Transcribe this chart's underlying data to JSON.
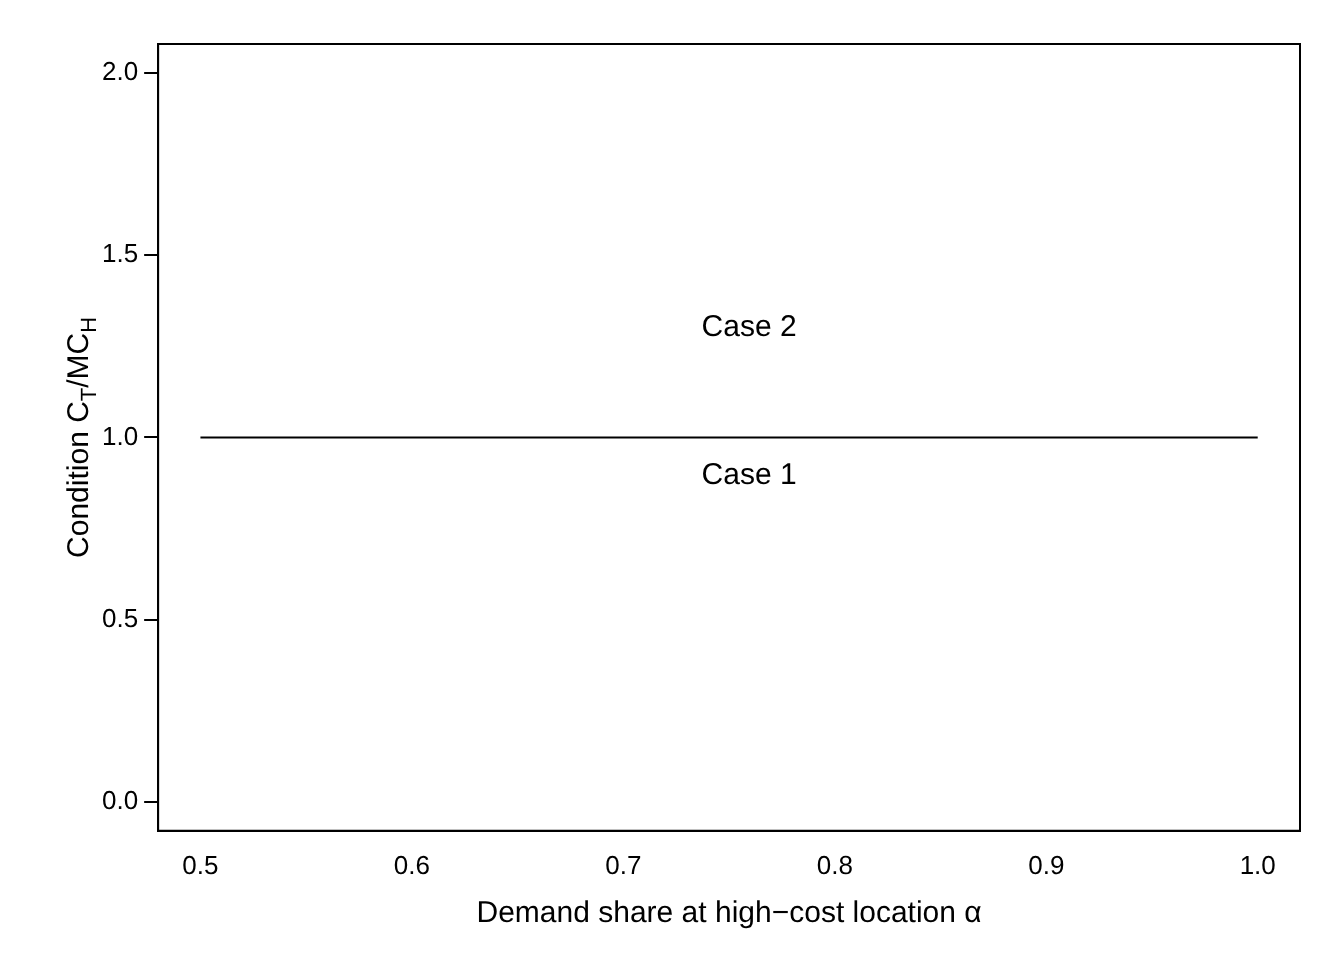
{
  "chart_data": {
    "type": "line",
    "xlabel": "Demand share at high−cost location α",
    "ylabel": "Condition C$_{T}$/MC$_{H}$",
    "x": [
      0.5,
      1.0
    ],
    "series": [
      {
        "color": "#000000",
        "values": [
          1,
          1
        ]
      }
    ],
    "xlim": [
      0.48,
      1.02
    ],
    "xticks": [
      0.5,
      0.6,
      0.7,
      0.8,
      0.9,
      {
        "value": 1,
        "label": "1.0"
      }
    ],
    "ylim": [
      -0.08,
      2.08
    ],
    "yticks": [
      {
        "value": 0,
        "label": "0.0"
      },
      0.5,
      {
        "value": 1,
        "label": "1.0"
      },
      1.5,
      {
        "value": 2,
        "label": "2.0"
      }
    ],
    "annotations": [
      "Case 2",
      "Case 1"
    ],
    "grid": false,
    "legend": false,
    "marker": "none",
    "line_style": "solid"
  }
}
